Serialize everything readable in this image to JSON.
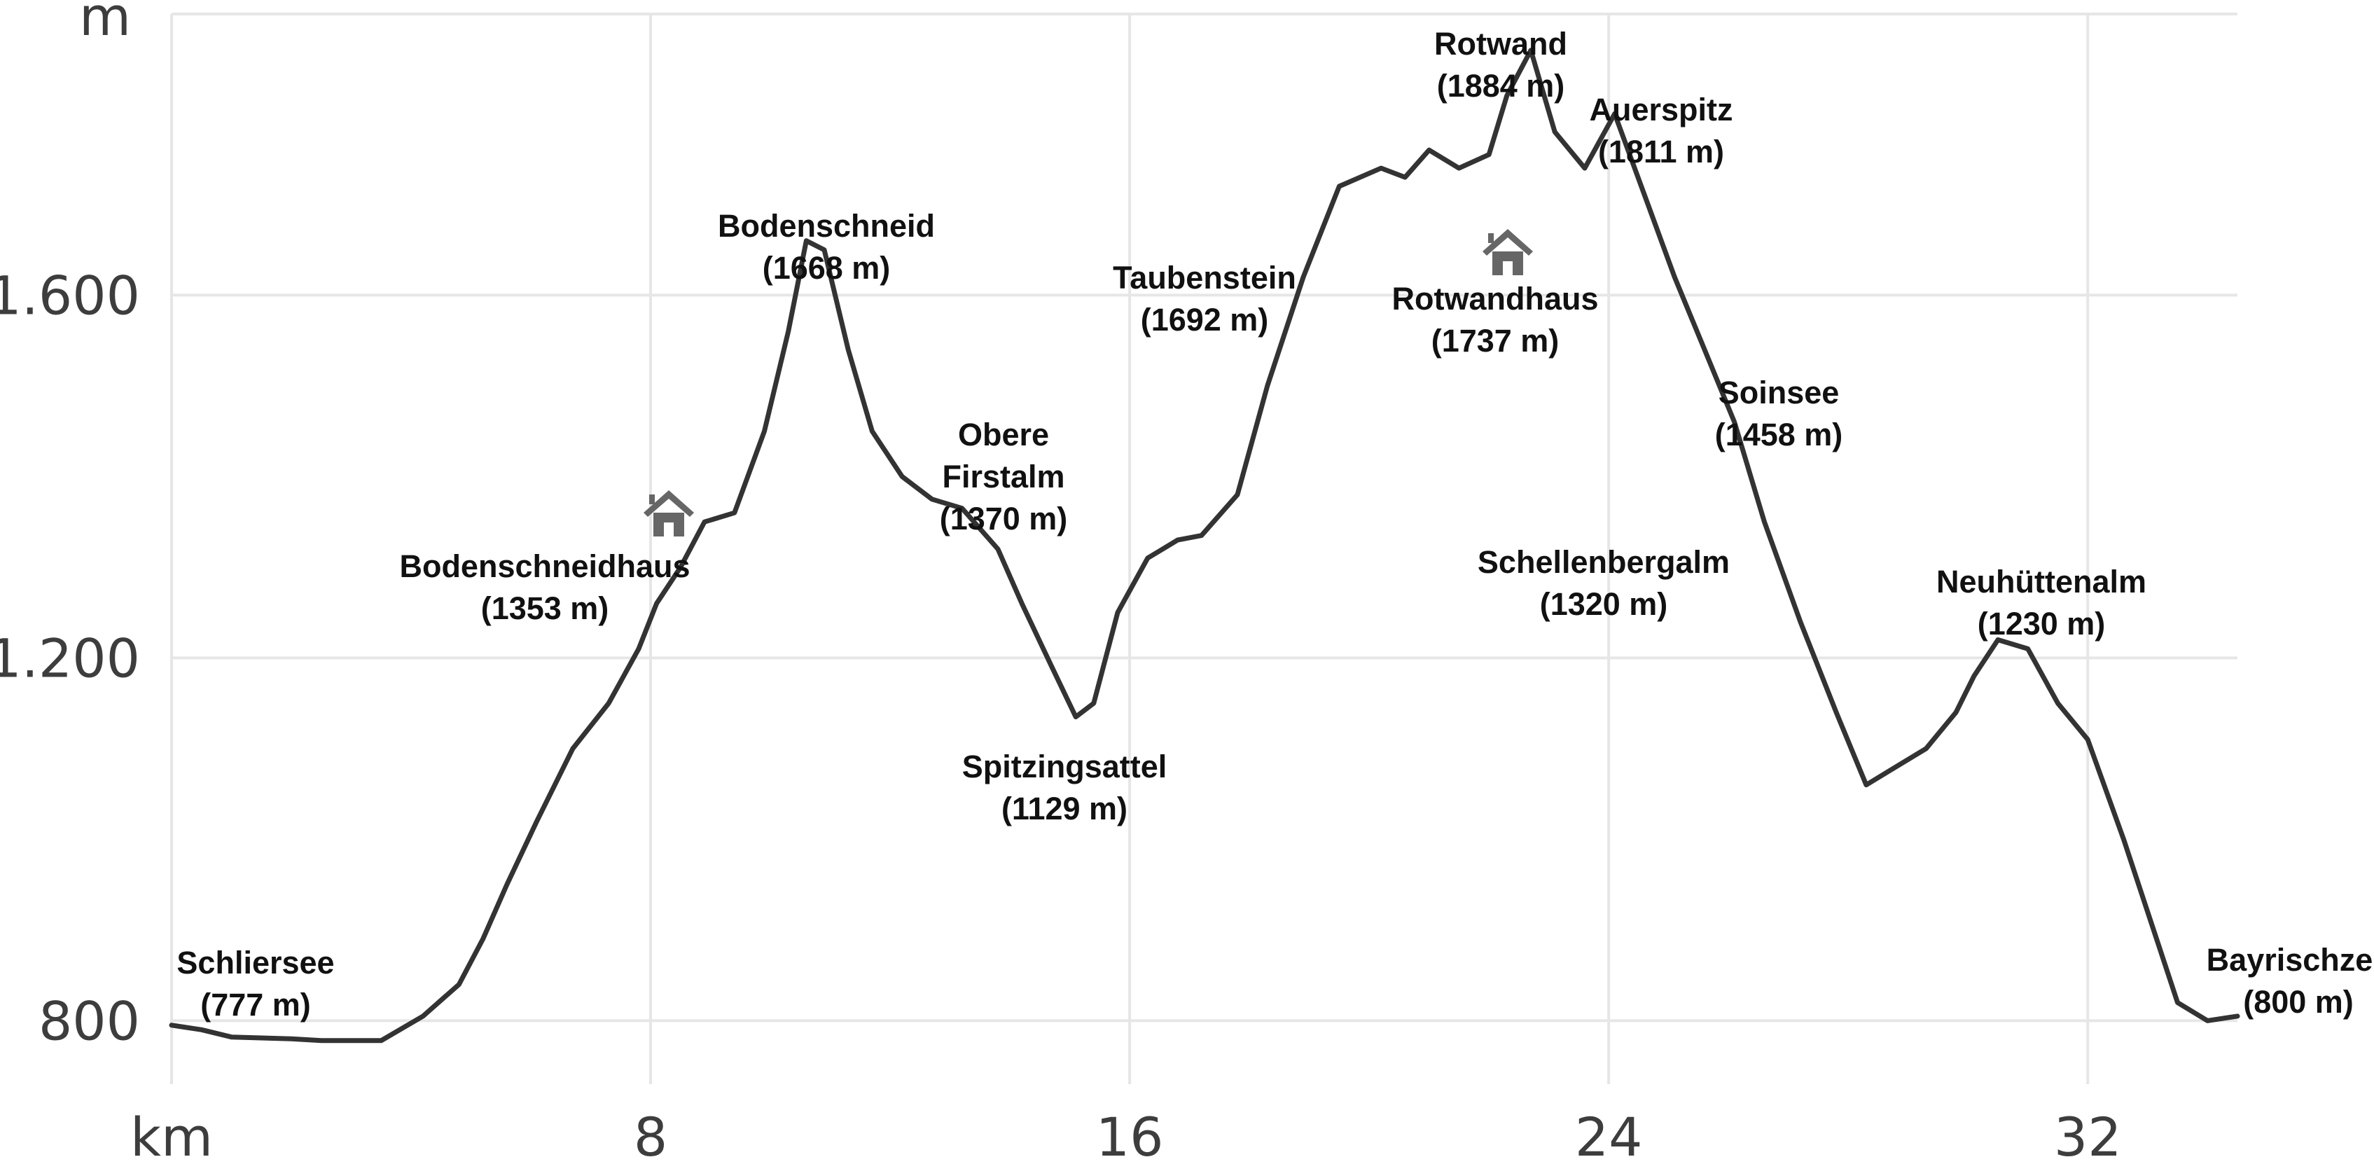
{
  "chart_data": {
    "type": "area",
    "title": "",
    "xlabel": "km",
    "ylabel": "m",
    "xlim": [
      0,
      34.5
    ],
    "ylim": [
      730,
      1910
    ],
    "grid": true,
    "x_ticks": [
      8,
      16,
      24,
      32
    ],
    "x_tick_labels": [
      "8",
      "16",
      "24",
      "32"
    ],
    "y_ticks": [
      800,
      1200,
      1600
    ],
    "y_tick_labels": [
      "800",
      "1.200",
      "1.600"
    ],
    "series": [
      {
        "x": [
          0,
          0.5,
          1,
          1.5,
          2,
          2.5,
          3,
          3.5,
          4.2,
          4.8,
          5.2,
          5.6,
          6.1,
          6.7,
          7.3,
          7.8,
          8.1,
          8.5,
          8.9,
          9.4,
          9.9,
          10.3,
          10.6,
          10.9,
          11.3,
          11.7,
          12.2,
          12.7,
          13.2,
          13.8,
          14.2,
          14.7,
          15.1,
          15.4,
          15.8,
          16.3,
          16.8,
          17.2,
          17.8,
          18.3,
          18.9,
          19.5,
          20.2,
          20.6,
          21.0,
          21.5,
          22.0,
          22.3,
          22.7,
          23.1,
          23.6,
          24.1,
          24.6,
          25.1,
          25.6,
          26.1,
          26.6,
          27.2,
          27.8,
          28.3,
          28.8,
          29.3,
          29.8,
          30.1,
          30.5,
          31.0,
          31.5,
          32.0,
          32.6,
          33.1,
          33.5,
          34.0,
          34.5
        ],
        "y": [
          795,
          790,
          782,
          781,
          780,
          778,
          778,
          778,
          805,
          840,
          890,
          950,
          1020,
          1100,
          1150,
          1210,
          1260,
          1300,
          1350,
          1360,
          1450,
          1560,
          1660,
          1650,
          1540,
          1450,
          1400,
          1375,
          1365,
          1320,
          1260,
          1190,
          1135,
          1150,
          1250,
          1310,
          1330,
          1335,
          1380,
          1500,
          1620,
          1720,
          1740,
          1730,
          1760,
          1740,
          1755,
          1820,
          1870,
          1780,
          1740,
          1800,
          1710,
          1620,
          1540,
          1460,
          1350,
          1240,
          1140,
          1060,
          1080,
          1100,
          1140,
          1180,
          1220,
          1210,
          1150,
          1110,
          1000,
          900,
          820,
          800,
          805
        ]
      }
    ],
    "annotations": [
      {
        "name": "Schliersee",
        "elevation": "(777 m)"
      },
      {
        "name": "Bodenschneidhaus",
        "elevation": "(1353 m)"
      },
      {
        "name": "Bodenschneid",
        "elevation": "(1668 m)"
      },
      {
        "name": "Obere",
        "name2": "Firstalm",
        "elevation": "(1370 m)"
      },
      {
        "name": "Spitzingsattel",
        "elevation": "(1129 m)"
      },
      {
        "name": "Taubenstein",
        "elevation": "(1692 m)"
      },
      {
        "name": "Rotwand",
        "elevation": "(1884 m)"
      },
      {
        "name": "Rotwandhaus",
        "elevation": "(1737 m)"
      },
      {
        "name": "Auerspitz",
        "elevation": "(1811 m)"
      },
      {
        "name": "Soinsee",
        "elevation": "(1458 m)"
      },
      {
        "name": "Schellenbergalm",
        "elevation": "(1320 m)"
      },
      {
        "name": "Neuhüttenalm",
        "elevation": "(1230 m)"
      },
      {
        "name": "Bayrischzell",
        "elevation": "(800 m)"
      }
    ],
    "hut_icons": [
      "house-icon",
      "house-icon"
    ]
  }
}
